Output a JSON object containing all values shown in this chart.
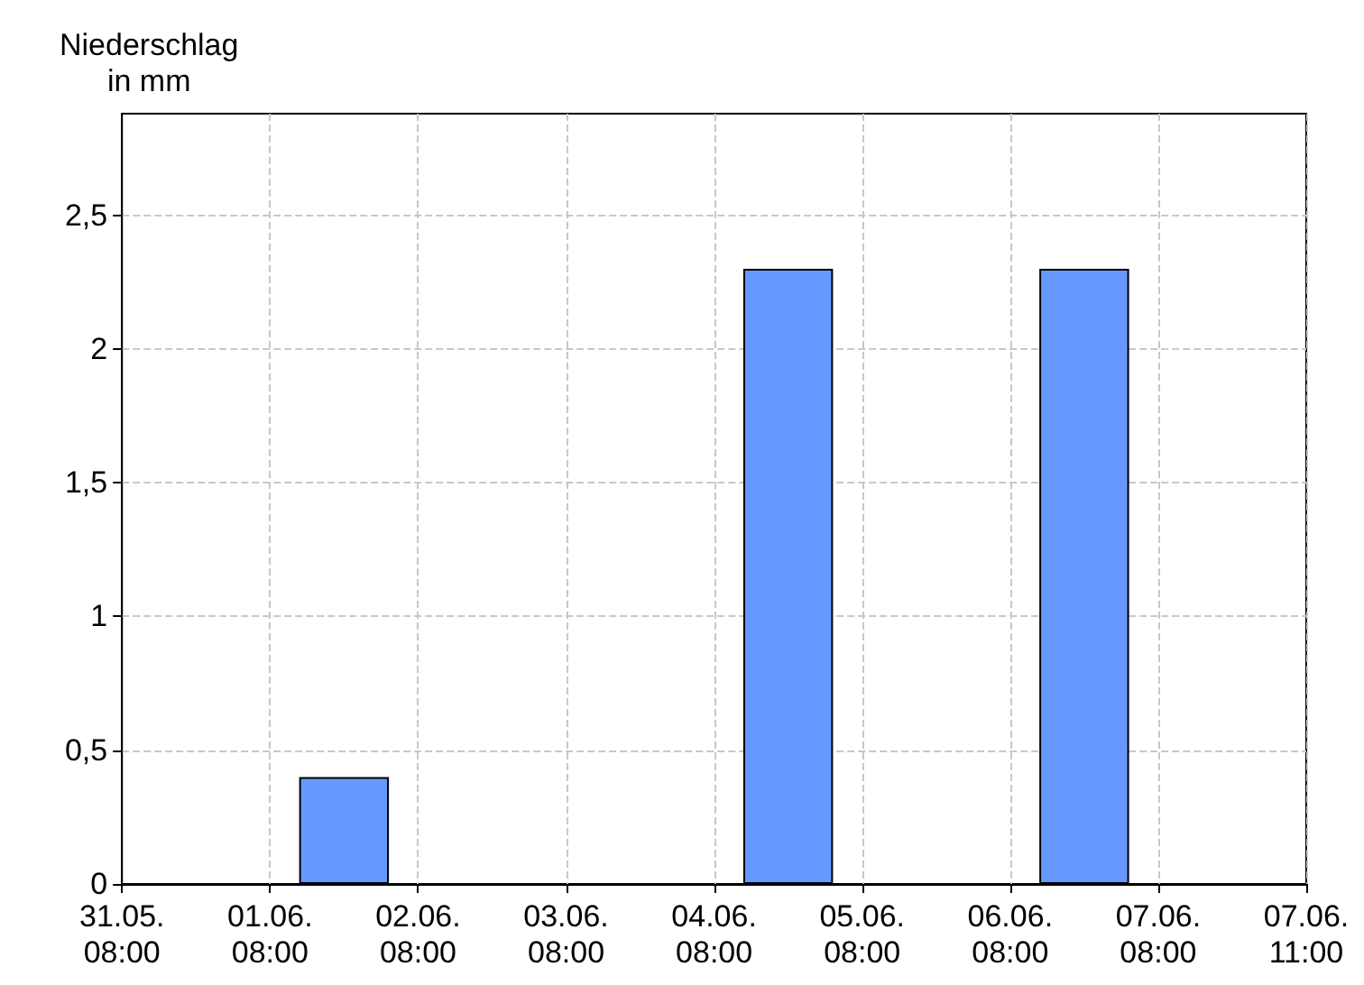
{
  "chart_data": {
    "type": "bar",
    "ylabel": "Niederschlag\nin mm",
    "x": [
      "--05-31T20:00",
      "--06-01T20:00",
      "--06-02T20:00",
      "--06-03T20:00",
      "--06-04T20:00",
      "--06-05T20:00",
      "--06-06T20:00"
    ],
    "values": [
      0,
      0.4,
      0,
      0,
      2.3,
      0,
      2.3
    ],
    "color": "#6699ff",
    "xlim": [
      "--05-31T08:00",
      "--06-08T08:00"
    ],
    "xticks": [
      {
        "value": "--05-31T08:00",
        "label": "31.05.\n08:00"
      },
      {
        "value": "--06-01T08:00",
        "label": "01.06.\n08:00"
      },
      {
        "value": "--06-02T08:00",
        "label": "02.06.\n08:00"
      },
      {
        "value": "--06-03T08:00",
        "label": "03.06.\n08:00"
      },
      {
        "value": "--06-04T08:00",
        "label": "04.06.\n08:00"
      },
      {
        "value": "--06-05T08:00",
        "label": "05.06.\n08:00"
      },
      {
        "value": "--06-06T08:00",
        "label": "06.06.\n08:00"
      },
      {
        "value": "--06-07T08:00",
        "label": "07.06.\n08:00"
      },
      {
        "value": "--06-08T08:00",
        "label": "07.06.\n11:00"
      }
    ],
    "ylim": [
      0,
      2.88
    ],
    "yticks": [
      0,
      {
        "value": 0.5,
        "label": "0,5"
      },
      1,
      {
        "value": 1.5,
        "label": "1,5"
      },
      2,
      {
        "value": 2.5,
        "label": "2,5"
      }
    ],
    "grid": true
  }
}
